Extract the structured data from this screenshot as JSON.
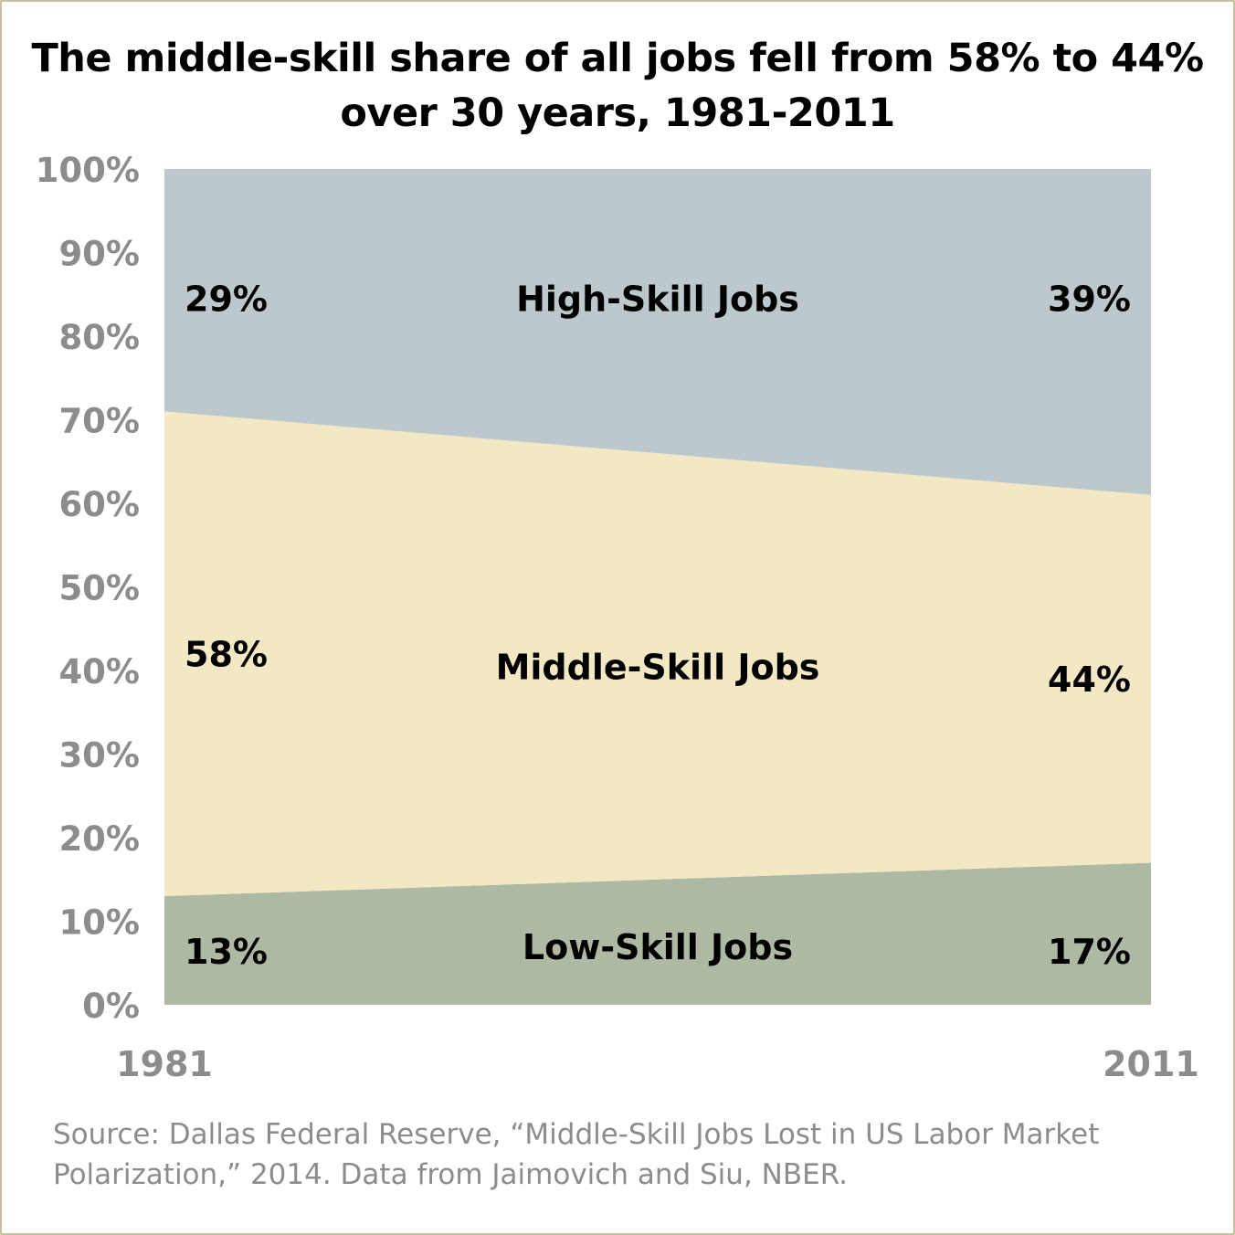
{
  "chart_data": {
    "type": "area",
    "stacked": true,
    "title": [
      "The middle-skill share of all jobs fell from 58% to 44%",
      "over 30 years, 1981-2011"
    ],
    "x": [
      "1981",
      "2011"
    ],
    "ylim": [
      0,
      100
    ],
    "yticks": [
      "0%",
      "10%",
      "20%",
      "30%",
      "40%",
      "50%",
      "60%",
      "70%",
      "80%",
      "90%",
      "100%"
    ],
    "series": [
      {
        "name": "Low-Skill Jobs",
        "values": [
          13,
          17
        ],
        "labels": [
          "13%",
          "17%"
        ],
        "color": "#adb9a3"
      },
      {
        "name": "Middle-Skill Jobs",
        "values": [
          58,
          44
        ],
        "labels": [
          "58%",
          "44%"
        ],
        "color": "#f3e8c4"
      },
      {
        "name": "High-Skill Jobs",
        "values": [
          29,
          39
        ],
        "labels": [
          "29%",
          "39%"
        ],
        "color": "#bcc8cc"
      }
    ],
    "grid": false,
    "legend": "none",
    "source": [
      "Source: Dallas Federal Reserve, “Middle-Skill Jobs Lost in US Labor Market",
      "Polarization,” 2014. Data from Jaimovich and Siu, NBER."
    ]
  }
}
